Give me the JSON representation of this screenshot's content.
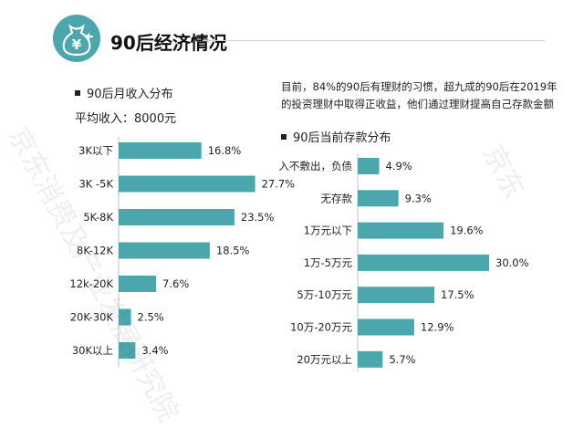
{
  "header": {
    "title": "90后经济情况",
    "logo_symbol": "¥"
  },
  "left_section": {
    "title": "90后月收入分布",
    "average_income": "平均收入：8000元"
  },
  "right_section": {
    "note": "目前，84%的90后有理财的习惯，超九成的90后在2019年的投资理财中取得正收益，他们通过理财提高自己存款金额",
    "title": "90后当前存款分布"
  },
  "watermarks": [
    "京东消费及产业发展研究院",
    "京东"
  ],
  "colors": {
    "bar": "#4ba6ad",
    "axis": "#bfc4c5",
    "rule": "#cfd5d6"
  },
  "chart_data": [
    {
      "type": "bar",
      "orientation": "horizontal",
      "title": "90后月收入分布",
      "categories": [
        "3K以下",
        "3K -5K",
        "5K-8K",
        "8K-12K",
        "12k-20K",
        "20K-30K",
        "30K以上"
      ],
      "values": [
        16.8,
        27.7,
        23.5,
        18.5,
        7.6,
        2.5,
        3.4
      ],
      "value_labels": [
        "16.8%",
        "27.7%",
        "23.5%",
        "18.5%",
        "7.6%",
        "2.5%",
        "3.4%"
      ],
      "unit": "%"
    },
    {
      "type": "bar",
      "orientation": "horizontal",
      "title": "90后当前存款分布",
      "categories": [
        "入不敷出，负债",
        "无存款",
        "1万元以下",
        "1万-5万元",
        "5万-10万元",
        "10万-20万元",
        "20万元以上"
      ],
      "values": [
        4.9,
        9.3,
        19.6,
        30.0,
        17.5,
        12.9,
        5.7
      ],
      "value_labels": [
        "4.9%",
        "9.3%",
        "19.6%",
        "30.0%",
        "17.5%",
        "12.9%",
        "5.7%"
      ],
      "unit": "%"
    }
  ]
}
